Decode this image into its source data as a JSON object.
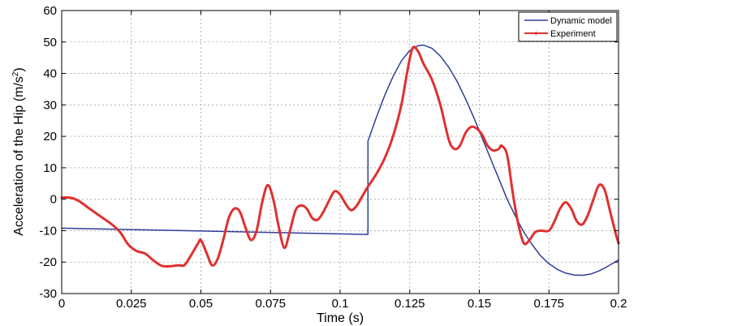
{
  "chart_data": {
    "type": "line",
    "xlabel": "Time (s)",
    "ylabel": "Acceleration of the Hip (m/s",
    "ylabel_sup": "2",
    "ylabel_end": ")",
    "xlim": [
      0,
      0.2
    ],
    "ylim": [
      -30,
      60
    ],
    "xticks": [
      0,
      0.025,
      0.05,
      0.075,
      0.1,
      0.125,
      0.15,
      0.175,
      0.2
    ],
    "xtick_labels": [
      "0",
      "0.025",
      "0.05",
      "0.075",
      "0.1",
      "0.125",
      "0.15",
      "0.175",
      "0.2"
    ],
    "yticks": [
      -30,
      -20,
      -10,
      0,
      10,
      20,
      30,
      40,
      50,
      60
    ],
    "ytick_labels": [
      "-30",
      "-20",
      "-10",
      "0",
      "10",
      "20",
      "30",
      "40",
      "50",
      "60"
    ],
    "grid": true,
    "legend_position": "top-right",
    "series": [
      {
        "name": "Dynamic model",
        "color": "#2e3e9a",
        "marker": "none",
        "points": [
          [
            0,
            -9.2
          ],
          [
            0.11,
            -11.2
          ],
          [
            0.11,
            18.5
          ],
          [
            0.113,
            26
          ],
          [
            0.116,
            33
          ],
          [
            0.119,
            39
          ],
          [
            0.122,
            44
          ],
          [
            0.125,
            47.3
          ],
          [
            0.128,
            48.8
          ],
          [
            0.13,
            49
          ],
          [
            0.133,
            48
          ],
          [
            0.136,
            45.5
          ],
          [
            0.139,
            42
          ],
          [
            0.142,
            37.5
          ],
          [
            0.145,
            32
          ],
          [
            0.148,
            26
          ],
          [
            0.151,
            19.5
          ],
          [
            0.154,
            13
          ],
          [
            0.157,
            6.5
          ],
          [
            0.16,
            0
          ],
          [
            0.163,
            -5.5
          ],
          [
            0.166,
            -10.5
          ],
          [
            0.169,
            -14.5
          ],
          [
            0.172,
            -18
          ],
          [
            0.175,
            -20.5
          ],
          [
            0.178,
            -22.3
          ],
          [
            0.181,
            -23.5
          ],
          [
            0.184,
            -24.1
          ],
          [
            0.187,
            -24.2
          ],
          [
            0.19,
            -23.8
          ],
          [
            0.193,
            -22.8
          ],
          [
            0.196,
            -21.4
          ],
          [
            0.2,
            -19.3
          ]
        ]
      },
      {
        "name": "Experiment",
        "color": "#e03030",
        "marker": "dot",
        "points": [
          [
            0,
            0.5
          ],
          [
            0.003,
            0.5
          ],
          [
            0.006,
            -0.5
          ],
          [
            0.01,
            -3
          ],
          [
            0.014,
            -5.5
          ],
          [
            0.018,
            -8
          ],
          [
            0.021,
            -10.5
          ],
          [
            0.024,
            -14.5
          ],
          [
            0.027,
            -16.5
          ],
          [
            0.03,
            -17.3
          ],
          [
            0.033,
            -19.5
          ],
          [
            0.036,
            -21.2
          ],
          [
            0.039,
            -21.3
          ],
          [
            0.042,
            -21
          ],
          [
            0.044,
            -21
          ],
          [
            0.046,
            -18.5
          ],
          [
            0.049,
            -14
          ],
          [
            0.05,
            -13
          ],
          [
            0.052,
            -17
          ],
          [
            0.054,
            -21
          ],
          [
            0.056,
            -19
          ],
          [
            0.058,
            -13
          ],
          [
            0.06,
            -6
          ],
          [
            0.062,
            -3
          ],
          [
            0.064,
            -4
          ],
          [
            0.066,
            -9
          ],
          [
            0.068,
            -13
          ],
          [
            0.07,
            -10
          ],
          [
            0.072,
            -1
          ],
          [
            0.074,
            4.5
          ],
          [
            0.076,
            0
          ],
          [
            0.078,
            -9
          ],
          [
            0.08,
            -15.5
          ],
          [
            0.082,
            -10
          ],
          [
            0.084,
            -3.5
          ],
          [
            0.086,
            -2
          ],
          [
            0.088,
            -3
          ],
          [
            0.09,
            -6
          ],
          [
            0.092,
            -6.5
          ],
          [
            0.094,
            -4
          ],
          [
            0.096,
            -0.5
          ],
          [
            0.098,
            2.5
          ],
          [
            0.1,
            1.5
          ],
          [
            0.102,
            -1.5
          ],
          [
            0.104,
            -3.5
          ],
          [
            0.106,
            -2
          ],
          [
            0.108,
            1
          ],
          [
            0.11,
            4
          ],
          [
            0.113,
            8
          ],
          [
            0.116,
            13
          ],
          [
            0.119,
            20
          ],
          [
            0.122,
            30
          ],
          [
            0.124,
            40
          ],
          [
            0.126,
            48
          ],
          [
            0.128,
            47
          ],
          [
            0.13,
            43
          ],
          [
            0.133,
            38
          ],
          [
            0.136,
            30
          ],
          [
            0.139,
            19
          ],
          [
            0.141,
            16
          ],
          [
            0.143,
            17
          ],
          [
            0.145,
            21
          ],
          [
            0.147,
            23
          ],
          [
            0.149,
            22.5
          ],
          [
            0.151,
            20.5
          ],
          [
            0.153,
            17
          ],
          [
            0.155,
            15.5
          ],
          [
            0.157,
            16
          ],
          [
            0.158,
            17
          ],
          [
            0.16,
            14
          ],
          [
            0.162,
            2
          ],
          [
            0.164,
            -8
          ],
          [
            0.166,
            -14
          ],
          [
            0.168,
            -13
          ],
          [
            0.17,
            -10.5
          ],
          [
            0.172,
            -10
          ],
          [
            0.175,
            -10
          ],
          [
            0.177,
            -7
          ],
          [
            0.179,
            -3
          ],
          [
            0.181,
            -1
          ],
          [
            0.183,
            -3
          ],
          [
            0.185,
            -7
          ],
          [
            0.187,
            -8
          ],
          [
            0.189,
            -5
          ],
          [
            0.191,
            0
          ],
          [
            0.193,
            4.5
          ],
          [
            0.195,
            3
          ],
          [
            0.197,
            -4
          ],
          [
            0.199,
            -11
          ],
          [
            0.2,
            -14
          ]
        ]
      }
    ]
  }
}
